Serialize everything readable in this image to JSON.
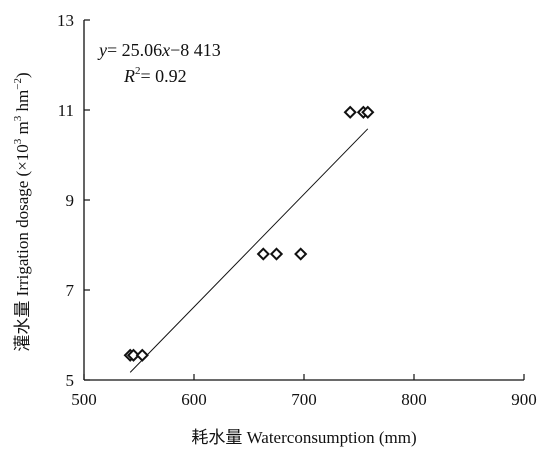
{
  "chart_data": {
    "type": "scatter",
    "title": "",
    "xlabel": "耗水量 Waterconsumption (mm)",
    "ylabel": "灌水量 Irrigation dosage (×10³ m³ hm⁻²)",
    "ylabel_parts": {
      "prefix": "灌水量 Irrigation dosage (×10",
      "sup1": "3",
      "mid": " m",
      "sup2": "3",
      "mid2": " hm",
      "sup3": "−2",
      "suffix": ")"
    },
    "xlim": [
      500,
      900
    ],
    "ylim": [
      5,
      13
    ],
    "xticks": [
      500,
      600,
      700,
      800,
      900
    ],
    "yticks": [
      5,
      7,
      9,
      11,
      13
    ],
    "grid": false,
    "marker": "diamond-open",
    "series": [
      {
        "points": [
          {
            "x": 542,
            "y": 5.55
          },
          {
            "x": 545,
            "y": 5.55
          },
          {
            "x": 553,
            "y": 5.55
          },
          {
            "x": 663,
            "y": 7.8
          },
          {
            "x": 675,
            "y": 7.8
          },
          {
            "x": 697,
            "y": 7.8
          },
          {
            "x": 742,
            "y": 10.95
          },
          {
            "x": 754,
            "y": 10.95
          },
          {
            "x": 758,
            "y": 10.95
          }
        ]
      }
    ],
    "trendline": {
      "slope": 0.02506,
      "intercept": -8.413,
      "x_range": [
        542,
        758
      ]
    },
    "annotation": {
      "equation": {
        "y": "y",
        "eq": "= 25.06",
        "x": "x",
        "rest": "−8 413"
      },
      "r2": {
        "R": "R",
        "sup": "2",
        "value": "= 0.92"
      }
    }
  }
}
